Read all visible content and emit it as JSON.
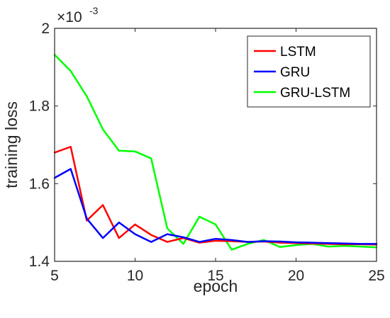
{
  "chart_data": {
    "type": "line",
    "xlabel": "epoch",
    "ylabel": "training loss",
    "xlim": [
      5,
      25
    ],
    "ylim": [
      1.4,
      2.0
    ],
    "x_ticks": [
      5,
      10,
      15,
      20,
      25
    ],
    "x_tick_labels": [
      "5",
      "10",
      "15",
      "20",
      "25"
    ],
    "y_ticks": [
      1.4,
      1.6,
      1.8,
      2.0
    ],
    "y_tick_labels": [
      "1.4",
      "1.6",
      "1.8",
      "2"
    ],
    "y_exponent_base": "×10",
    "y_exponent_power": "-3",
    "legend_position": "top-right",
    "grid": false,
    "x": [
      5,
      6,
      7,
      8,
      9,
      10,
      11,
      12,
      13,
      14,
      15,
      16,
      17,
      18,
      19,
      20,
      21,
      22,
      23,
      24,
      25
    ],
    "series": [
      {
        "name": "LSTM",
        "color": "#ff0000",
        "values": [
          1.68,
          1.695,
          1.505,
          1.545,
          1.46,
          1.495,
          1.468,
          1.45,
          1.46,
          1.448,
          1.453,
          1.452,
          1.45,
          1.451,
          1.448,
          1.447,
          1.446,
          1.445,
          1.444,
          1.444,
          1.443
        ]
      },
      {
        "name": "GRU",
        "color": "#0000ff",
        "values": [
          1.615,
          1.638,
          1.51,
          1.46,
          1.5,
          1.47,
          1.45,
          1.47,
          1.462,
          1.45,
          1.458,
          1.455,
          1.45,
          1.452,
          1.451,
          1.449,
          1.448,
          1.447,
          1.446,
          1.445,
          1.445
        ]
      },
      {
        "name": "GRU-LSTM",
        "color": "#00ff00",
        "values": [
          1.932,
          1.89,
          1.825,
          1.74,
          1.685,
          1.683,
          1.665,
          1.485,
          1.445,
          1.515,
          1.495,
          1.43,
          1.445,
          1.455,
          1.437,
          1.442,
          1.445,
          1.438,
          1.44,
          1.438,
          1.436
        ]
      }
    ]
  }
}
